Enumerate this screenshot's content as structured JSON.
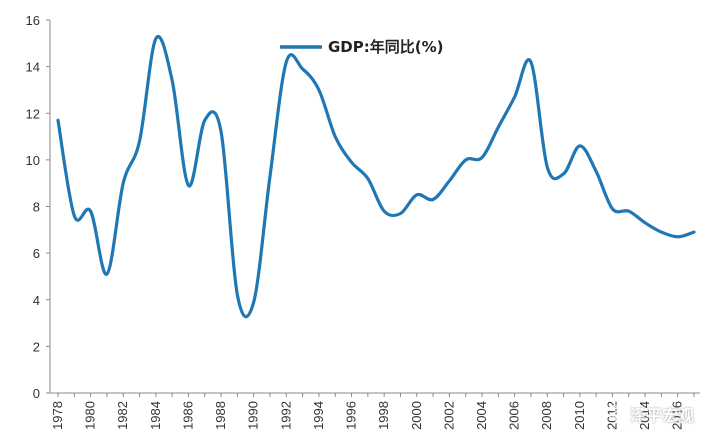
{
  "chart_data": {
    "type": "line",
    "title": "",
    "xlabel": "",
    "ylabel": "",
    "ylim": [
      0,
      16
    ],
    "y_ticks": [
      0,
      2,
      4,
      6,
      8,
      10,
      12,
      14,
      16
    ],
    "x_tick_labels": [
      "1978",
      "1980",
      "1982",
      "1984",
      "1986",
      "1988",
      "1990",
      "1992",
      "1994",
      "1996",
      "1998",
      "2000",
      "2002",
      "2004",
      "2006",
      "2008",
      "2010",
      "2012",
      "2014",
      "2016"
    ],
    "legend": "top-center",
    "series": [
      {
        "name": "GDP:年同比(%)",
        "color": "#1f77b4",
        "x": [
          1978,
          1979,
          1980,
          1981,
          1982,
          1983,
          1984,
          1985,
          1986,
          1987,
          1988,
          1989,
          1990,
          1991,
          1992,
          1993,
          1994,
          1995,
          1996,
          1997,
          1998,
          1999,
          2000,
          2001,
          2002,
          2003,
          2004,
          2005,
          2006,
          2007,
          2008,
          2009,
          2010,
          2011,
          2012,
          2013,
          2014,
          2015,
          2016,
          2017
        ],
        "values": [
          11.7,
          7.6,
          7.8,
          5.1,
          9.0,
          10.8,
          15.2,
          13.4,
          8.9,
          11.7,
          11.2,
          4.2,
          3.9,
          9.3,
          14.2,
          13.9,
          13.0,
          11.0,
          9.9,
          9.2,
          7.8,
          7.7,
          8.5,
          8.3,
          9.1,
          10.0,
          10.1,
          11.4,
          12.7,
          14.2,
          9.7,
          9.4,
          10.6,
          9.5,
          7.9,
          7.8,
          7.3,
          6.9,
          6.7,
          6.9
        ]
      }
    ]
  },
  "watermark": {
    "text": "泽平宏观",
    "icon": "wechat-icon"
  }
}
